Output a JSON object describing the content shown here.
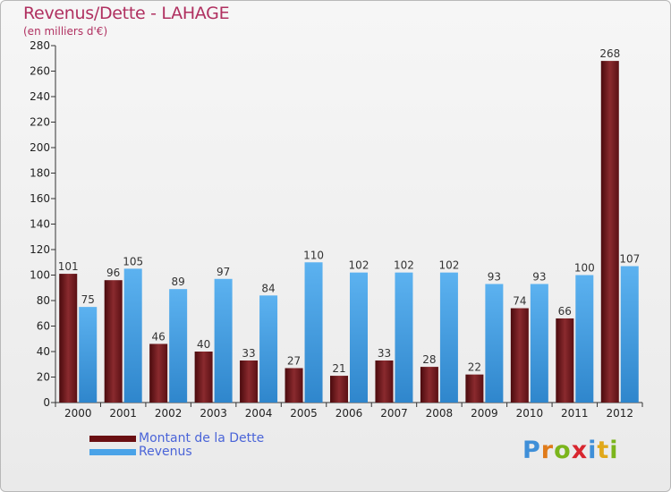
{
  "header": {
    "title": "Revenus/Dette - LAHAGE",
    "subtitle": "(en milliers d'€)"
  },
  "chart_data": {
    "type": "bar",
    "title": "Revenus/Dette - LAHAGE",
    "subtitle": "(en milliers d'€)",
    "xlabel": "",
    "ylabel": "",
    "ylim": [
      0,
      280
    ],
    "yticks": [
      0,
      20,
      40,
      60,
      80,
      100,
      120,
      140,
      160,
      180,
      200,
      220,
      240,
      260,
      280
    ],
    "grid": false,
    "legend_position": "bottom-left",
    "categories": [
      "2000",
      "2001",
      "2002",
      "2003",
      "2004",
      "2005",
      "2006",
      "2007",
      "2008",
      "2009",
      "2010",
      "2011",
      "2012"
    ],
    "series": [
      {
        "name": "Montant de la Dette",
        "color": "#7a1e22",
        "values": [
          101,
          96,
          46,
          40,
          33,
          27,
          21,
          33,
          28,
          22,
          74,
          66,
          268
        ]
      },
      {
        "name": "Revenus",
        "color": "#4aa3e8",
        "values": [
          75,
          105,
          89,
          97,
          84,
          110,
          102,
          102,
          102,
          93,
          93,
          100,
          107
        ]
      }
    ]
  },
  "legend": {
    "items": [
      {
        "label": "Montant de la Dette",
        "color": "#6a0f12"
      },
      {
        "label": "Revenus",
        "color": "#4aa3e8"
      }
    ]
  },
  "logo": {
    "letters": [
      "P",
      "r",
      "o",
      "x",
      "i",
      "t",
      "i"
    ],
    "colors": [
      "#3f8fd8",
      "#e07b1a",
      "#7bb51c",
      "#d8262f",
      "#3f8fd8",
      "#e0a81a",
      "#7bb51c"
    ]
  }
}
